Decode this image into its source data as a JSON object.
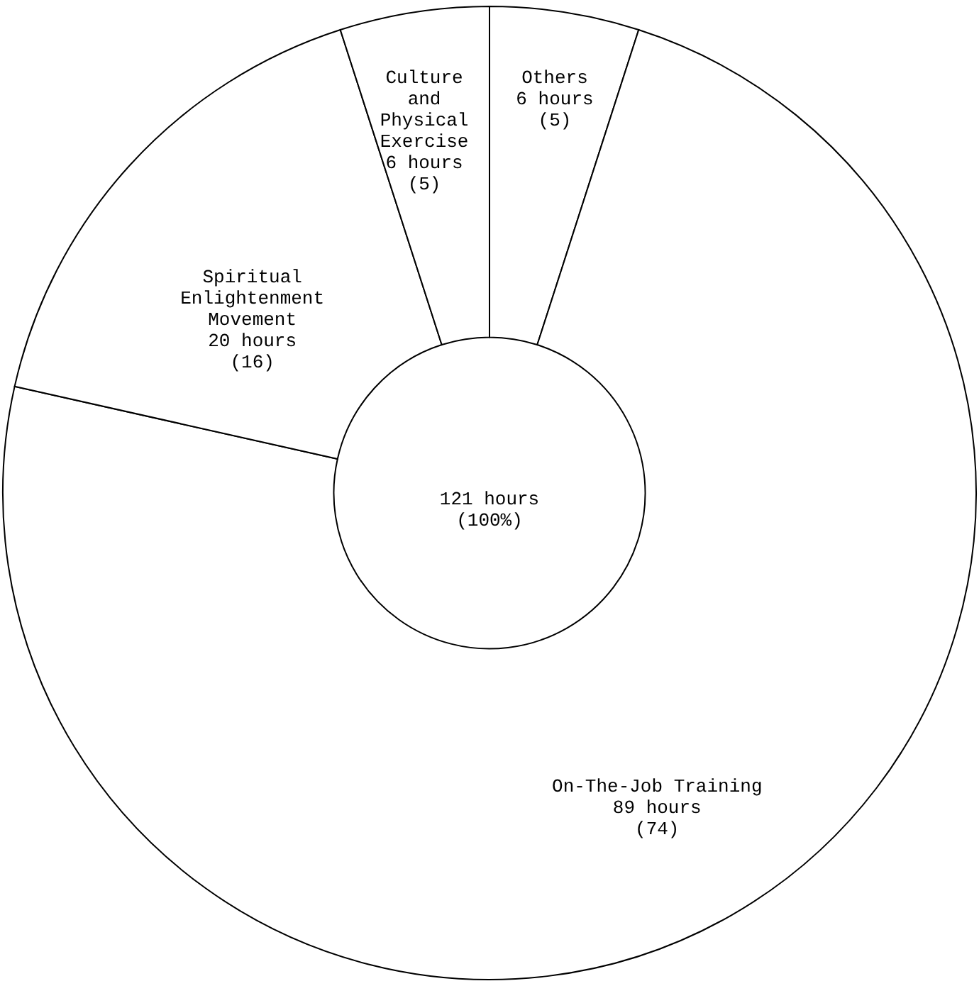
{
  "chart_data": {
    "type": "donut",
    "categories": [
      "Others",
      "On-The-Job Training",
      "Spiritual Enlightenment Movement",
      "Culture and Physical Exercise"
    ],
    "values": [
      6,
      89,
      20,
      6
    ],
    "value_labels": [
      "6 hours\n(5)",
      "89 hours\n(74)",
      "20 hours\n(16)",
      "6 hours\n(5)"
    ],
    "colors": [
      "#ffffff",
      "#ffffff",
      "#ffffff",
      "#ffffff"
    ],
    "annotations": [
      "121 hours\n(100%)"
    ],
    "legend": false
  }
}
